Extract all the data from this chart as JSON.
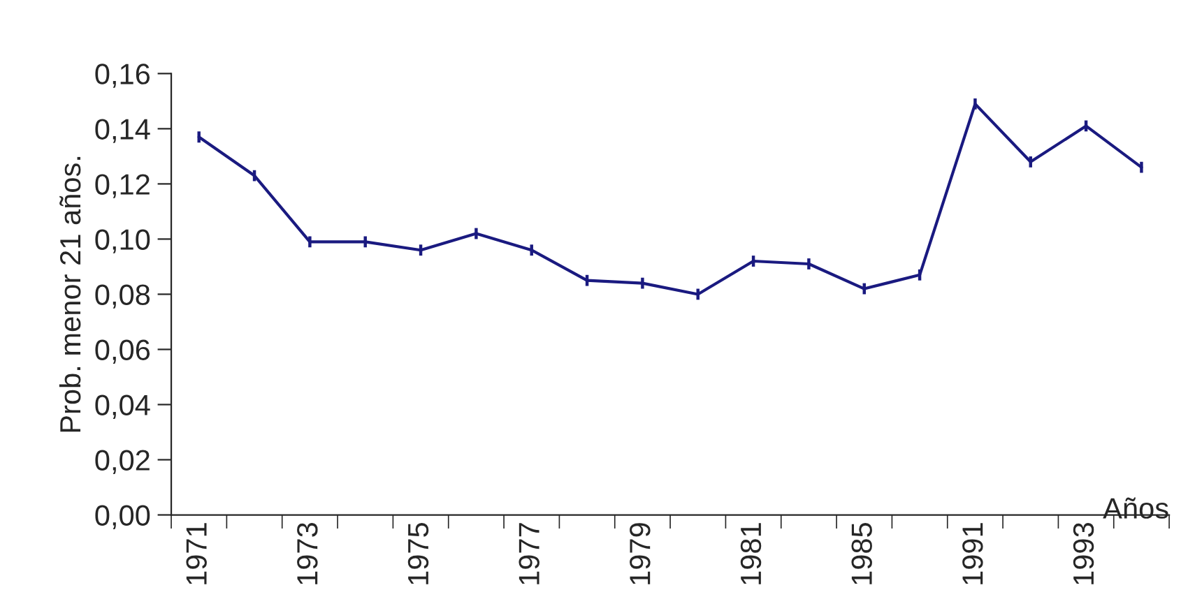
{
  "chart_data": {
    "type": "line",
    "xlabel": "Años",
    "ylabel": "Prob. menor 21 años.",
    "categories": [
      "1971",
      null,
      "1973",
      null,
      "1975",
      null,
      "1977",
      null,
      "1979",
      null,
      "1981",
      null,
      "1985",
      null,
      "1991",
      null,
      "1993",
      null
    ],
    "series": [
      {
        "color": "#1a1a80",
        "values": [
          0.137,
          0.123,
          0.099,
          0.099,
          0.096,
          0.102,
          0.096,
          0.085,
          0.084,
          0.08,
          0.092,
          0.091,
          0.082,
          0.087,
          0.149,
          0.128,
          0.141,
          0.126
        ],
        "errors": [
          0.002,
          0.002,
          0.002,
          0.002,
          0.002,
          0.002,
          0.002,
          0.002,
          0.002,
          0.002,
          0.002,
          0.002,
          0.002,
          0.002,
          0.002,
          0.002,
          0.002,
          0.002
        ]
      }
    ],
    "ylim": [
      0,
      0.16
    ],
    "yticks": [
      {
        "value": 0,
        "label": "0,00"
      },
      {
        "value": 0.02,
        "label": "0,02"
      },
      {
        "value": 0.04,
        "label": "0,04"
      },
      {
        "value": 0.06,
        "label": "0,06"
      },
      {
        "value": 0.08,
        "label": "0,08"
      },
      {
        "value": 0.1,
        "label": "0,10"
      },
      {
        "value": 0.12,
        "label": "0,12"
      },
      {
        "value": 0.14,
        "label": "0,14"
      },
      {
        "value": 0.16,
        "label": "0,16"
      }
    ],
    "grid": false,
    "marker": "none",
    "line_style": "solid"
  }
}
